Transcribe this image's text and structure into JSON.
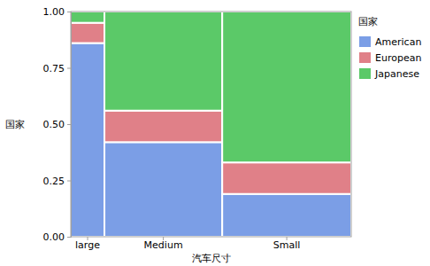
{
  "chart_data": {
    "type": "mosaic",
    "x_label": "汽车尺寸",
    "y_label": "国家",
    "legend_title": "国家",
    "categories": [
      "large",
      "Medium",
      "Small"
    ],
    "widths": [
      0.12,
      0.42,
      0.46
    ],
    "series": [
      {
        "name": "American",
        "color": "#7b9ee6",
        "values": [
          0.86,
          0.42,
          0.19
        ]
      },
      {
        "name": "European",
        "color": "#e08088",
        "values": [
          0.09,
          0.14,
          0.14
        ]
      },
      {
        "name": "Japanese",
        "color": "#5bc968",
        "values": [
          0.05,
          0.44,
          0.67
        ]
      }
    ],
    "stacked": true,
    "ylim": [
      0,
      1
    ],
    "yticks": [
      {
        "value": 0,
        "label": "0.00"
      },
      {
        "value": 0.25,
        "label": "0.25"
      },
      {
        "value": 0.5,
        "label": "0.50"
      },
      {
        "value": 0.75,
        "label": "0.75"
      },
      {
        "value": 1,
        "label": "1.00"
      }
    ],
    "legend": "right"
  }
}
